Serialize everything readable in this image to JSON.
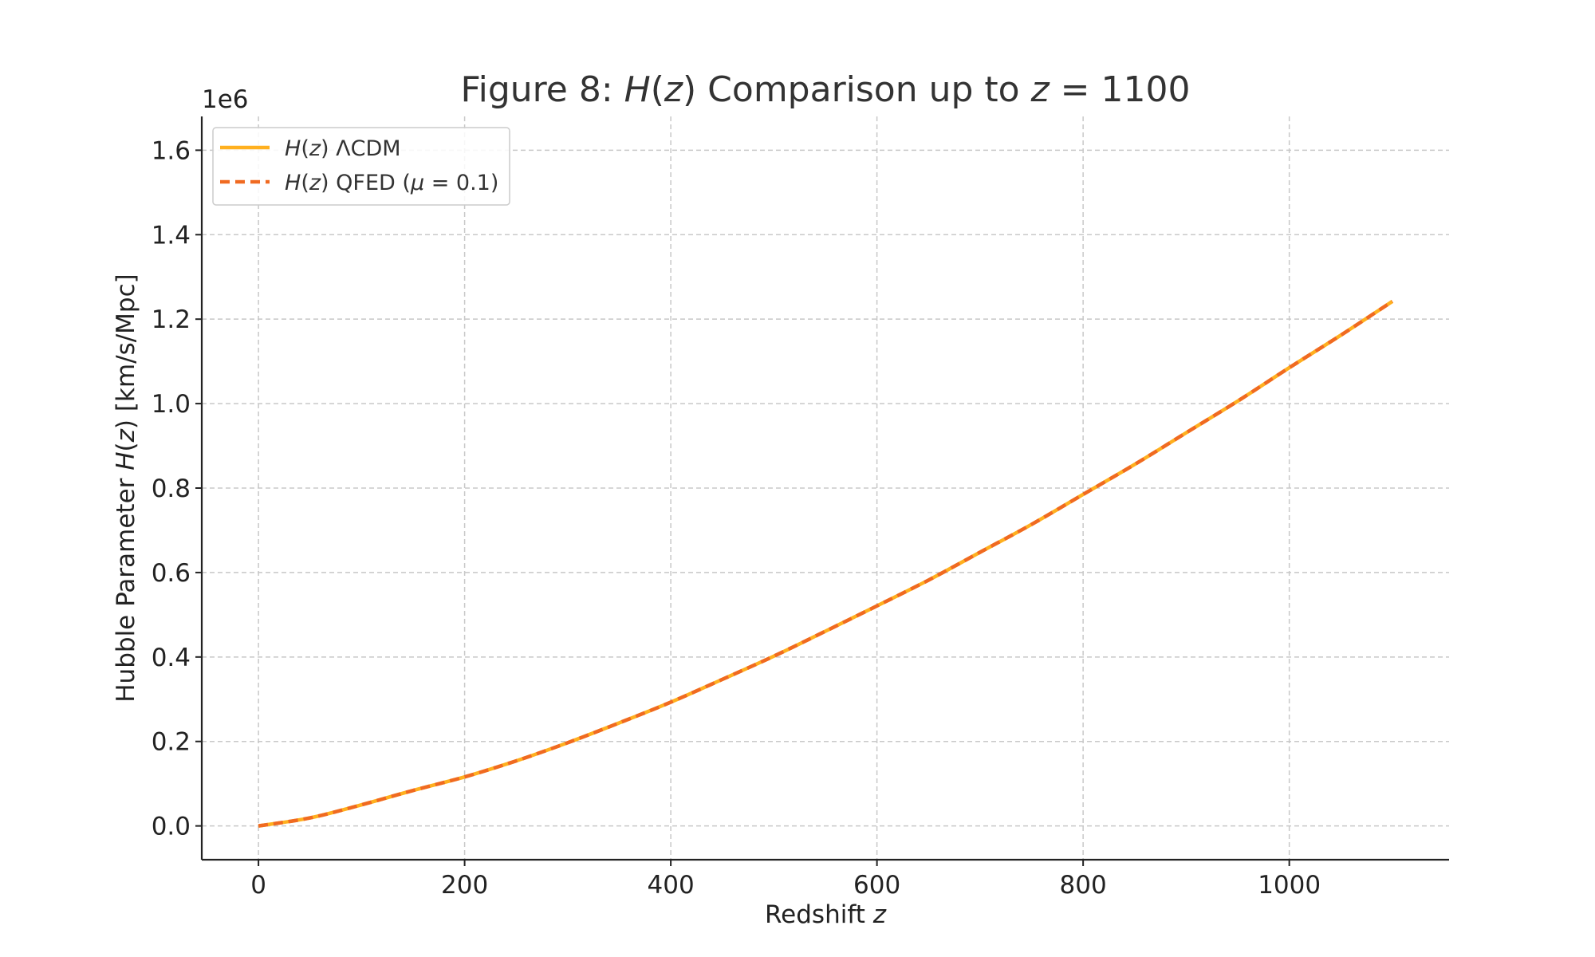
{
  "chart_data": {
    "type": "line",
    "title": {
      "prefix": "Figure 8: ",
      "func": "H",
      "arg": "z",
      "middle": " Comparison up to ",
      "var": "z",
      "value": "1100"
    },
    "xlabel": {
      "text": "Redshift ",
      "var": "z"
    },
    "ylabel": {
      "prefix": "Hubble Parameter ",
      "func": "H",
      "arg": "z",
      "suffix": " [km/s/Mpc]"
    },
    "y_offset_label": "1e6",
    "xlim": [
      -55,
      1155
    ],
    "ylim": [
      -0.08,
      1.68
    ],
    "x_ticks": [
      0,
      200,
      400,
      600,
      800,
      1000
    ],
    "x_tick_labels": [
      "0",
      "200",
      "400",
      "600",
      "800",
      "1000"
    ],
    "y_ticks": [
      0.0,
      0.2,
      0.4,
      0.6,
      0.8,
      1.0,
      1.2,
      1.4,
      1.6
    ],
    "y_tick_labels": [
      "0.0",
      "0.2",
      "0.4",
      "0.6",
      "0.8",
      "1.0",
      "1.2",
      "1.4",
      "1.6"
    ],
    "grid": true,
    "legend_position": "top-left",
    "x": [
      0,
      50,
      100,
      150,
      200,
      250,
      300,
      350,
      400,
      450,
      500,
      550,
      600,
      650,
      700,
      750,
      800,
      850,
      900,
      950,
      1000,
      1050,
      1100
    ],
    "series": [
      {
        "name": {
          "func": "H",
          "arg": "z",
          "suffix": " ΛCDM"
        },
        "style": "solid",
        "color": "#FFB01F",
        "values": [
          0.0,
          0.019,
          0.05,
          0.084,
          0.116,
          0.154,
          0.197,
          0.244,
          0.293,
          0.347,
          0.402,
          0.461,
          0.521,
          0.582,
          0.648,
          0.714,
          0.785,
          0.856,
          0.931,
          1.006,
          1.085,
          1.162,
          1.242
        ]
      },
      {
        "name": {
          "func": "H",
          "arg": "z",
          "suffix": " QFED (",
          "mu": "μ",
          "eq": " = 0.1)"
        },
        "style": "dashed",
        "color": "#F06A21",
        "values": [
          0.0,
          0.019,
          0.05,
          0.084,
          0.116,
          0.154,
          0.197,
          0.244,
          0.293,
          0.347,
          0.402,
          0.461,
          0.521,
          0.582,
          0.648,
          0.714,
          0.785,
          0.856,
          0.931,
          1.006,
          1.085,
          1.162,
          1.242
        ]
      }
    ]
  }
}
